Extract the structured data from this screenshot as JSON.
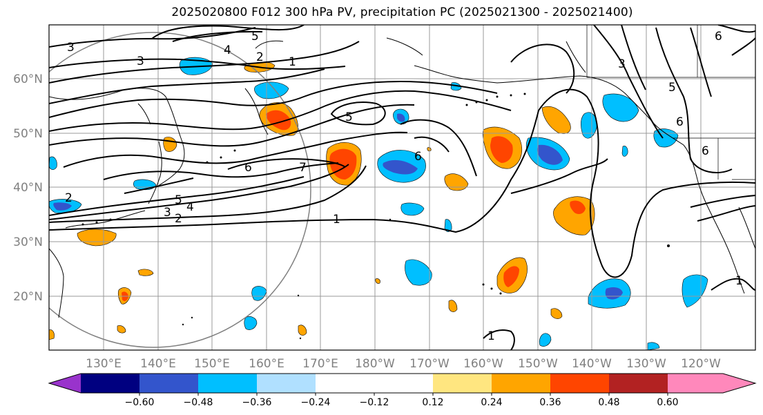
{
  "title": "2025020800 F012 300 hPa PV, precipitation PC (2025021300 - 2025021400)",
  "lat_labels": [
    "60°N",
    "50°N",
    "40°N",
    "30°N",
    "20°N"
  ],
  "lon_labels": [
    "130°E",
    "140°E",
    "150°E",
    "160°E",
    "170°E",
    "180°W",
    "170°W",
    "160°W",
    "150°W",
    "140°W",
    "130°W",
    "120°W"
  ],
  "colorbar": {
    "ticks": [
      "−0.60",
      "−0.48",
      "−0.36",
      "−0.24",
      "−0.12",
      "0.12",
      "0.24",
      "0.36",
      "0.48",
      "0.60"
    ],
    "colors": [
      "#9933cc",
      "#000080",
      "#3355cc",
      "#00bfff",
      "#b0e0ff",
      "#ffffff",
      "#ffe680",
      "#ffa500",
      "#ff4500",
      "#b22222",
      "#ff88bb"
    ]
  },
  "contour_labels": [
    {
      "id": "c3-nw",
      "text": "3"
    },
    {
      "id": "c3-w",
      "text": "3"
    },
    {
      "id": "c5-top",
      "text": "5"
    },
    {
      "id": "c4-top",
      "text": "4"
    },
    {
      "id": "c2-top",
      "text": "2"
    },
    {
      "id": "c1-top",
      "text": "1"
    },
    {
      "id": "c5-mid",
      "text": "5"
    },
    {
      "id": "c6-mid",
      "text": "6"
    },
    {
      "id": "c7-mid",
      "text": "7"
    },
    {
      "id": "c6-east",
      "text": "6"
    },
    {
      "id": "c5-sw",
      "text": "5"
    },
    {
      "id": "c4-sw",
      "text": "4"
    },
    {
      "id": "c3-sw",
      "text": "3"
    },
    {
      "id": "c2-sw",
      "text": "2"
    },
    {
      "id": "c2-west",
      "text": "2"
    },
    {
      "id": "c1-south",
      "text": "1"
    },
    {
      "id": "c3-ne",
      "text": "3"
    },
    {
      "id": "c5-ne",
      "text": "5"
    },
    {
      "id": "c6-ne1",
      "text": "6"
    },
    {
      "id": "c6-ne2",
      "text": "6"
    },
    {
      "id": "c6-ne3",
      "text": "6"
    },
    {
      "id": "c1-se",
      "text": "1"
    },
    {
      "id": "c1-bottom",
      "text": "1"
    }
  ]
}
